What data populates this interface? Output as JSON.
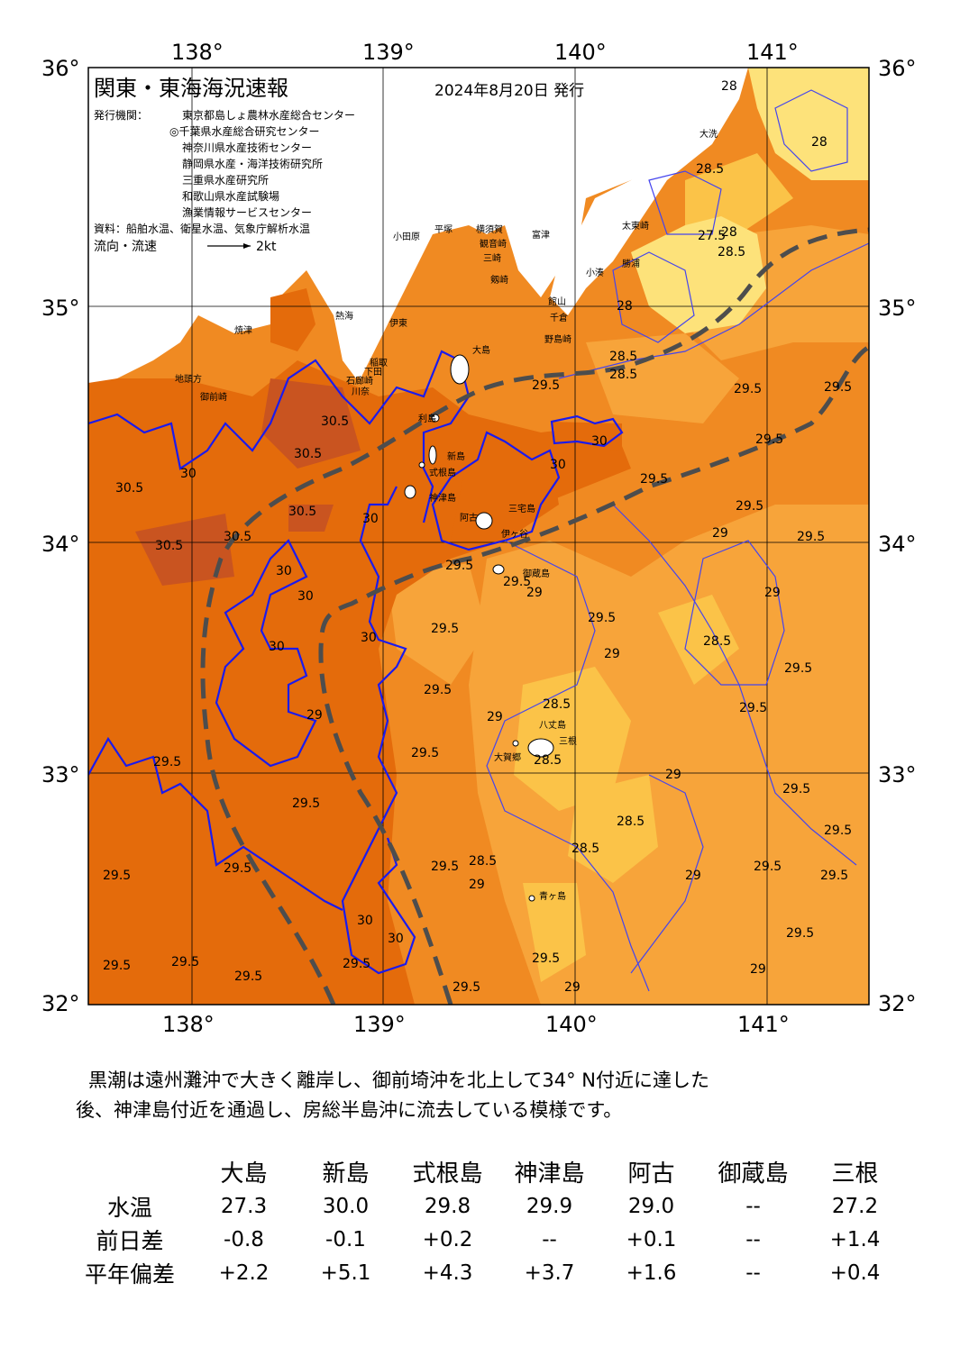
{
  "map": {
    "title": "関東・東海海況速報",
    "date": "2024年8月20日 発行",
    "issuers_label": "発行機関：",
    "issuers": [
      "東京都島しょ農林水産総合センター",
      "◎千葉県水産総合研究センター",
      "神奈川県水産技術センター",
      "静岡県水産・海洋技術研究所",
      "三重県水産研究所",
      "和歌山県水産試験場",
      "漁業情報サービスセンター"
    ],
    "source": "資料：船舶水温、衛星水温、気象庁解析水温",
    "flow_label": "流向・流速",
    "flow_scale": "2kt",
    "lon_labels": [
      "138°",
      "139°",
      "140°",
      "141°"
    ],
    "lat_labels": [
      "36°",
      "35°",
      "34°",
      "33°",
      "32°"
    ],
    "places": [
      "大洗",
      "太東崎",
      "勝浦",
      "小湊",
      "富津",
      "館山",
      "千倉",
      "野島崎",
      "横須賀",
      "観音崎",
      "三崎",
      "剱崎",
      "平塚",
      "小田原",
      "熱海",
      "伊東",
      "稲取",
      "下田",
      "石廊崎",
      "御前崎",
      "焼津",
      "地頭方",
      "大島",
      "利島",
      "新島",
      "式根島",
      "神津島",
      "三宅島",
      "阿古",
      "伊ヶ谷",
      "御蔵島",
      "八丈島",
      "三根",
      "大賀郷",
      "青ヶ島",
      "川奈"
    ],
    "contour_labels": [
      "28",
      "28",
      "28.5",
      "27.5",
      "28",
      "28.5",
      "28",
      "28.5",
      "28.5",
      "29.5",
      "29.5",
      "29.5",
      "29.5",
      "29.5",
      "29.5",
      "30",
      "30",
      "30.5",
      "30.5",
      "30.5",
      "30.5",
      "30",
      "30.5",
      "30.5",
      "30",
      "30",
      "30",
      "30",
      "29.5",
      "29.5",
      "29.5",
      "30",
      "29",
      "29.5",
      "29.5",
      "29",
      "29.5",
      "29",
      "28.5",
      "29.5",
      "29.5",
      "29",
      "28.5",
      "29",
      "29.5",
      "28.5",
      "29.5",
      "29",
      "29.5",
      "28.5",
      "28.5",
      "29",
      "29.5",
      "28.5",
      "29.5",
      "29.5",
      "29",
      "29.5",
      "29.5",
      "29",
      "29.5",
      "29.5",
      "29.5",
      "29.5",
      "30",
      "30",
      "29.5",
      "29.5",
      "29.5",
      "29",
      "29",
      "29.5",
      "29.5"
    ]
  },
  "summary": {
    "line1": "黒潮は遠州灘沖で大きく離岸し、御前埼沖を北上して34° N付近に達した",
    "line2": "後、神津島付近を通過し、房総半島沖に流去している模様です。"
  },
  "table": {
    "headers": [
      "大島",
      "新島",
      "式根島",
      "神津島",
      "阿古",
      "御蔵島",
      "三根"
    ],
    "rows": [
      {
        "label": "水温",
        "values": [
          "27.3",
          "30.0",
          "29.8",
          "29.9",
          "29.0",
          "--",
          "27.2"
        ]
      },
      {
        "label": "前日差",
        "values": [
          "-0.8",
          "-0.1",
          "+0.2",
          "--",
          "+0.1",
          "--",
          "+1.4"
        ]
      },
      {
        "label": "平年偏差",
        "values": [
          "+2.2",
          "+5.1",
          "+4.3",
          "+3.7",
          "+1.6",
          "--",
          "+0.4"
        ]
      }
    ]
  },
  "colors": {
    "t28": "#fde27a",
    "t285": "#fbc348",
    "t29": "#f7a43a",
    "t295": "#f08a22",
    "t30": "#e46b0b",
    "t305": "#c95420",
    "land": "#ffffff",
    "contour30": "#1a1aee",
    "contour_other": "#4444ee",
    "kuroshio": "#4d4d4d"
  }
}
